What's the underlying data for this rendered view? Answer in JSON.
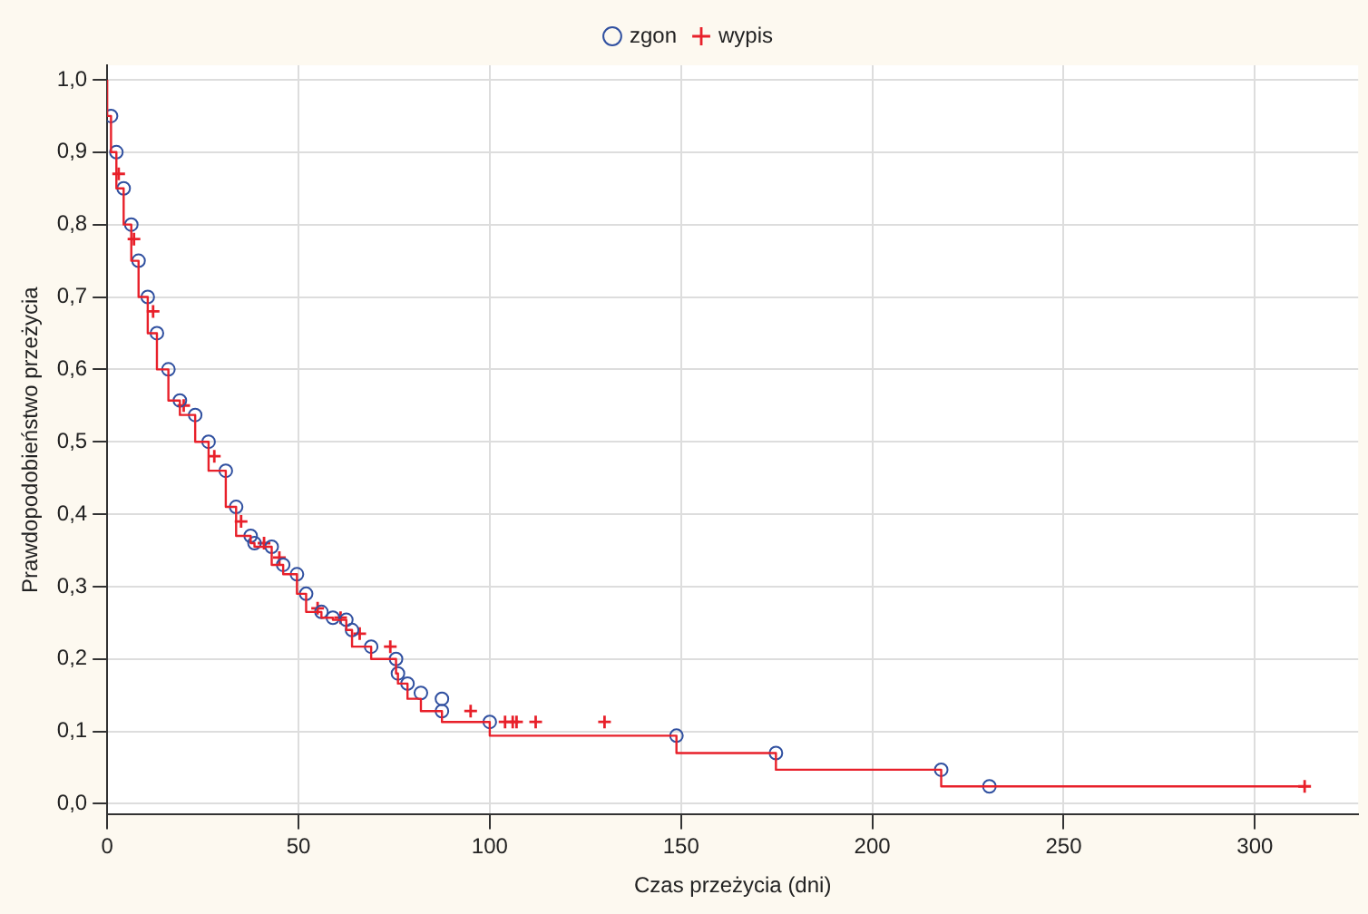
{
  "chart_data": {
    "type": "step",
    "xlabel": "Czas przeżycia (dni)",
    "ylabel": "Prawdopodobieństwo przeżycia",
    "xlim": [
      0,
      327
    ],
    "xticks": [
      0,
      50,
      100,
      150,
      200,
      250,
      300
    ],
    "ylim": [
      -0.015,
      1.02
    ],
    "yticks": [
      {
        "value": 0,
        "label": "0,0"
      },
      {
        "value": 0.1,
        "label": "0,1"
      },
      {
        "value": 0.2,
        "label": "0,2"
      },
      {
        "value": 0.3,
        "label": "0,3"
      },
      {
        "value": 0.4,
        "label": "0,4"
      },
      {
        "value": 0.5,
        "label": "0,5"
      },
      {
        "value": 0.6,
        "label": "0,6"
      },
      {
        "value": 0.7,
        "label": "0,7"
      },
      {
        "value": 0.8,
        "label": "0,8"
      },
      {
        "value": 0.9,
        "label": "0,9"
      },
      {
        "value": 1,
        "label": "1,0"
      }
    ],
    "grid": true,
    "legend": "top",
    "line_style": "solid",
    "series": [
      {
        "color": "#e8202a",
        "marker": "none",
        "x": [
          0,
          1,
          2.4,
          4.3,
          6.3,
          8.2,
          10.6,
          13,
          16,
          19,
          23,
          26.5,
          31,
          33.7,
          37.5,
          38.5,
          43,
          46,
          49.6,
          52,
          56,
          59,
          62.5,
          64,
          69,
          75.5,
          76,
          78.5,
          82,
          87.5,
          100,
          148.8,
          174.8,
          218,
          230.6,
          313
        ],
        "values": [
          1,
          0.95,
          0.9,
          0.85,
          0.8,
          0.75,
          0.7,
          0.65,
          0.6,
          0.557,
          0.537,
          0.5,
          0.46,
          0.41,
          0.37,
          0.36,
          0.355,
          0.33,
          0.317,
          0.29,
          0.265,
          0.257,
          0.254,
          0.24,
          0.217,
          0.2,
          0.18,
          0.166,
          0.145,
          0.128,
          0.113,
          0.094,
          0.07,
          0.047,
          0.024,
          0.024
        ]
      },
      {
        "type": "scatter",
        "name": "zgon",
        "color": "#3050a0",
        "marker": "circle",
        "x": [
          1,
          2.4,
          4.3,
          6.3,
          8.2,
          10.6,
          13,
          16,
          19,
          23,
          26.5,
          31,
          33.7,
          37.5,
          38.5,
          43,
          46,
          49.6,
          52,
          56,
          59,
          62.5,
          64,
          69,
          75.5,
          76,
          78.5,
          82,
          87.5,
          87.5,
          100,
          148.8,
          174.8,
          218,
          230.6
        ],
        "values": [
          0.95,
          0.9,
          0.85,
          0.8,
          0.75,
          0.7,
          0.65,
          0.6,
          0.557,
          0.537,
          0.5,
          0.46,
          0.41,
          0.37,
          0.36,
          0.355,
          0.33,
          0.317,
          0.29,
          0.265,
          0.257,
          0.254,
          0.24,
          0.217,
          0.2,
          0.18,
          0.166,
          0.153,
          0.145,
          0.128,
          0.113,
          0.094,
          0.07,
          0.047,
          0.024
        ]
      },
      {
        "type": "scatter",
        "name": "wypis",
        "color": "#e8202a",
        "marker": "cross",
        "x": [
          3,
          7,
          12,
          20,
          28,
          35,
          41,
          45,
          55,
          61,
          66,
          74,
          95,
          104,
          106,
          107,
          112,
          130,
          313
        ],
        "values": [
          0.87,
          0.78,
          0.68,
          0.55,
          0.48,
          0.39,
          0.36,
          0.34,
          0.27,
          0.257,
          0.235,
          0.217,
          0.128,
          0.113,
          0.113,
          0.113,
          0.113,
          0.113,
          0.024
        ]
      }
    ]
  }
}
